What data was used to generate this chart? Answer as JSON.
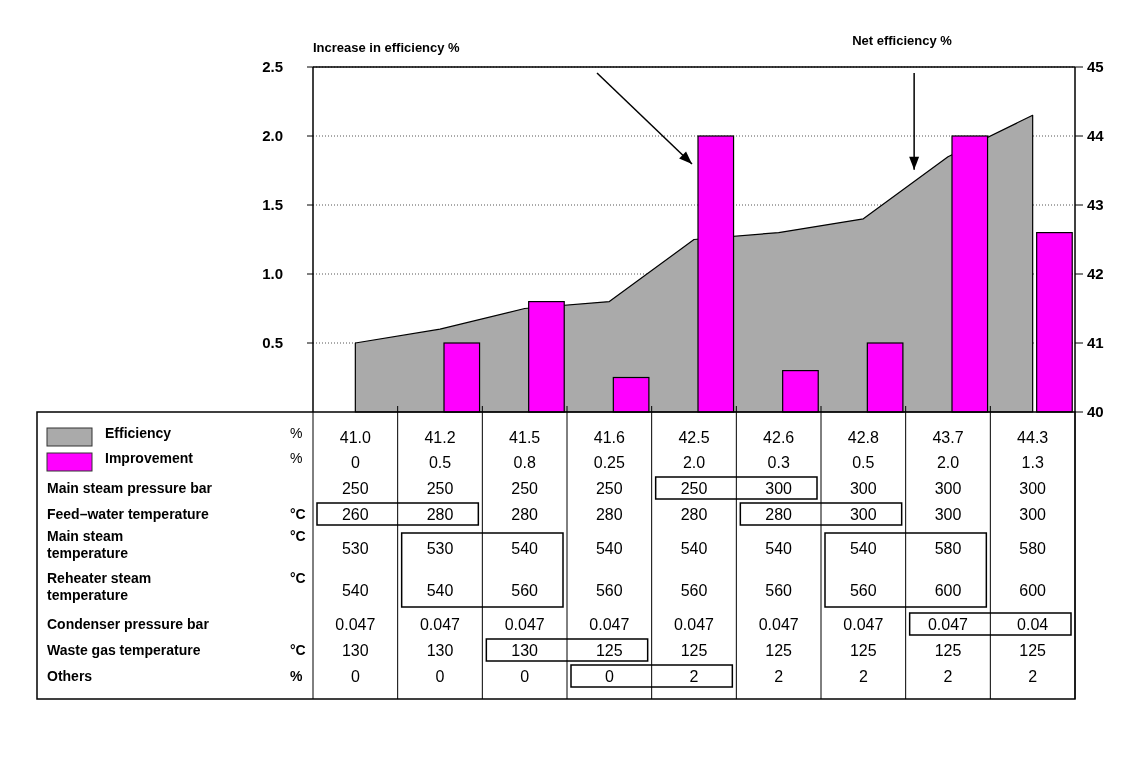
{
  "chart_data": {
    "type": "bar",
    "categories": [
      null,
      null,
      null,
      null,
      null,
      null,
      null,
      null,
      null
    ],
    "series": [
      {
        "name": "Efficiency",
        "type": "area",
        "axis": "y2",
        "color": "#aaaaaa",
        "values": [
          41.0,
          41.2,
          41.5,
          41.6,
          42.5,
          42.6,
          42.8,
          43.7,
          44.3
        ],
        "value_labels": [
          "41.0",
          "41.2",
          "41.5",
          "41.6",
          "42.5",
          "42.6",
          "42.8",
          "43.7",
          "44.3"
        ]
      },
      {
        "name": "Improvement",
        "color": "#ff00ff",
        "values": [
          0,
          0.5,
          0.8,
          0.25,
          2.0,
          0.3,
          0.5,
          2.0,
          1.3
        ],
        "value_labels": [
          "0",
          "0.5",
          "0.8",
          "0.25",
          "2.0",
          "0.3",
          "0.5",
          "2.0",
          "1.3"
        ]
      }
    ],
    "ylim": [
      0,
      2.5
    ],
    "yticks": [
      {
        "value": 0.5,
        "label": "0.5"
      },
      {
        "value": 1,
        "label": "1.0"
      },
      {
        "value": 1.5,
        "label": "1.5"
      },
      {
        "value": 2,
        "label": "2.0"
      },
      {
        "value": 2.5,
        "label": "2.5"
      }
    ],
    "y2lim": [
      40,
      45
    ],
    "y2ticks": [
      40,
      41,
      42,
      43,
      44,
      45
    ],
    "grid": "y",
    "legend": "bottom left",
    "annotations": [
      "Increase in efficiency %",
      "Net efficiency %",
      "%",
      "%",
      "Main steam pressure bar",
      "250",
      "250",
      "250",
      "250",
      "250",
      "300",
      "300",
      "300",
      "300",
      "Feed–water temperature\t°C",
      "260",
      "280",
      "280",
      "280",
      "280",
      "280",
      "300",
      "300",
      "300",
      "Main steam\ntemperature\t°C",
      "530",
      "530",
      "540",
      "540",
      "540",
      "540",
      "540",
      "580",
      "580",
      "Reheater steam\ntemperature\t°C",
      "540",
      "540",
      "560",
      "560",
      "560",
      "560",
      "560",
      "600",
      "600",
      "Condenser pressure bar",
      "0.047",
      "0.047",
      "0.047",
      "0.047",
      "0.047",
      "0.047",
      "0.047",
      "0.047",
      "0.04",
      "Waste gas temperature\t°C",
      "130",
      "130",
      "130",
      "125",
      "125",
      "125",
      "125",
      "125",
      "125",
      "Others\t%",
      "0",
      "0",
      "0",
      "0",
      "2",
      "2",
      "2",
      "2",
      "2"
    ]
  }
}
